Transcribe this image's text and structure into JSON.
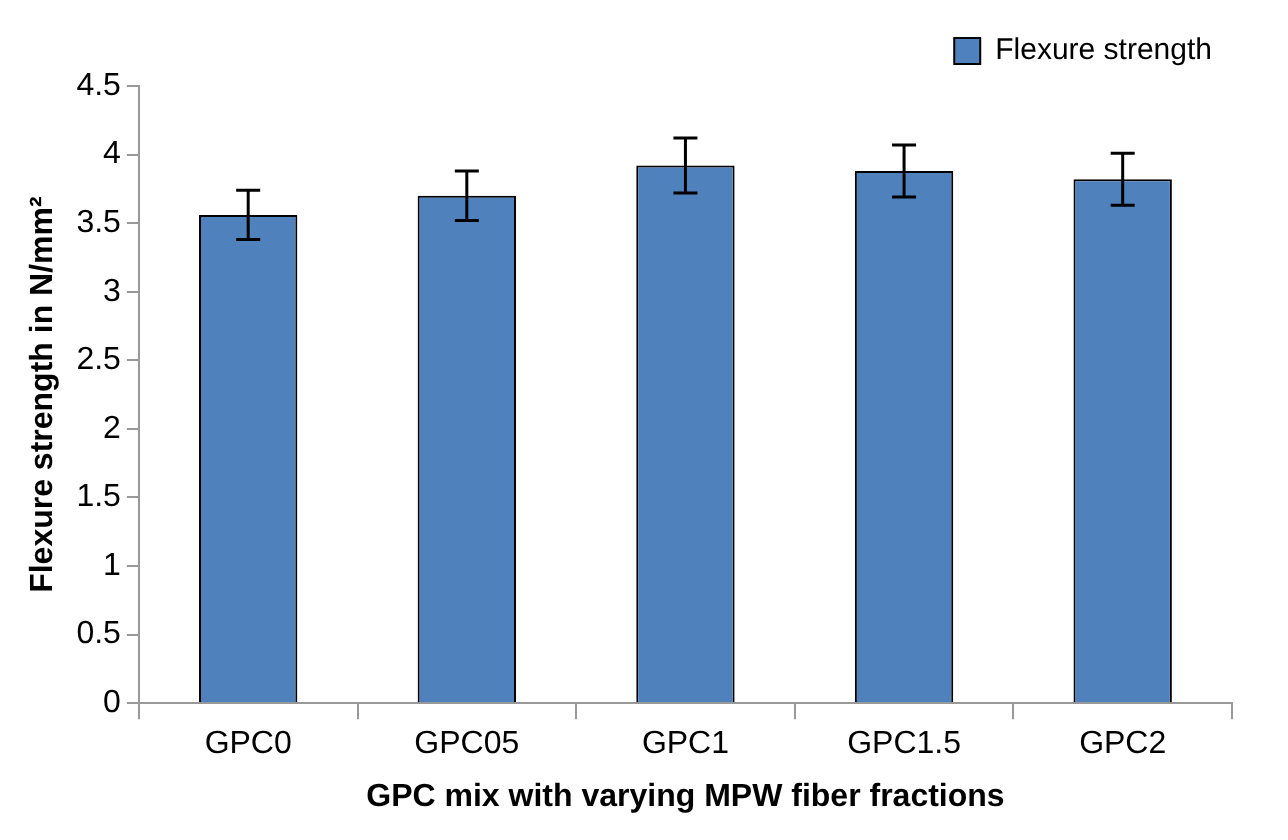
{
  "chart_data": {
    "type": "bar",
    "xlabel": "GPC mix with varying MPW fiber fractions",
    "ylabel": "Flexure strength in N/mm²",
    "categories": [
      "GPC0",
      "GPC05",
      "GPC1",
      "GPC1.5",
      "GPC2"
    ],
    "series": [
      {
        "name": "Flexure strength",
        "color": "#4f81bd",
        "values": [
          3.56,
          3.7,
          3.92,
          3.88,
          3.82
        ],
        "errors": [
          0.18,
          0.18,
          0.2,
          0.19,
          0.19
        ]
      }
    ],
    "ylim": [
      0,
      4.5
    ],
    "yticks": [
      0,
      0.5,
      1,
      1.5,
      2,
      2.5,
      3,
      3.5,
      4,
      4.5
    ],
    "grid": false,
    "legend": "top right"
  }
}
